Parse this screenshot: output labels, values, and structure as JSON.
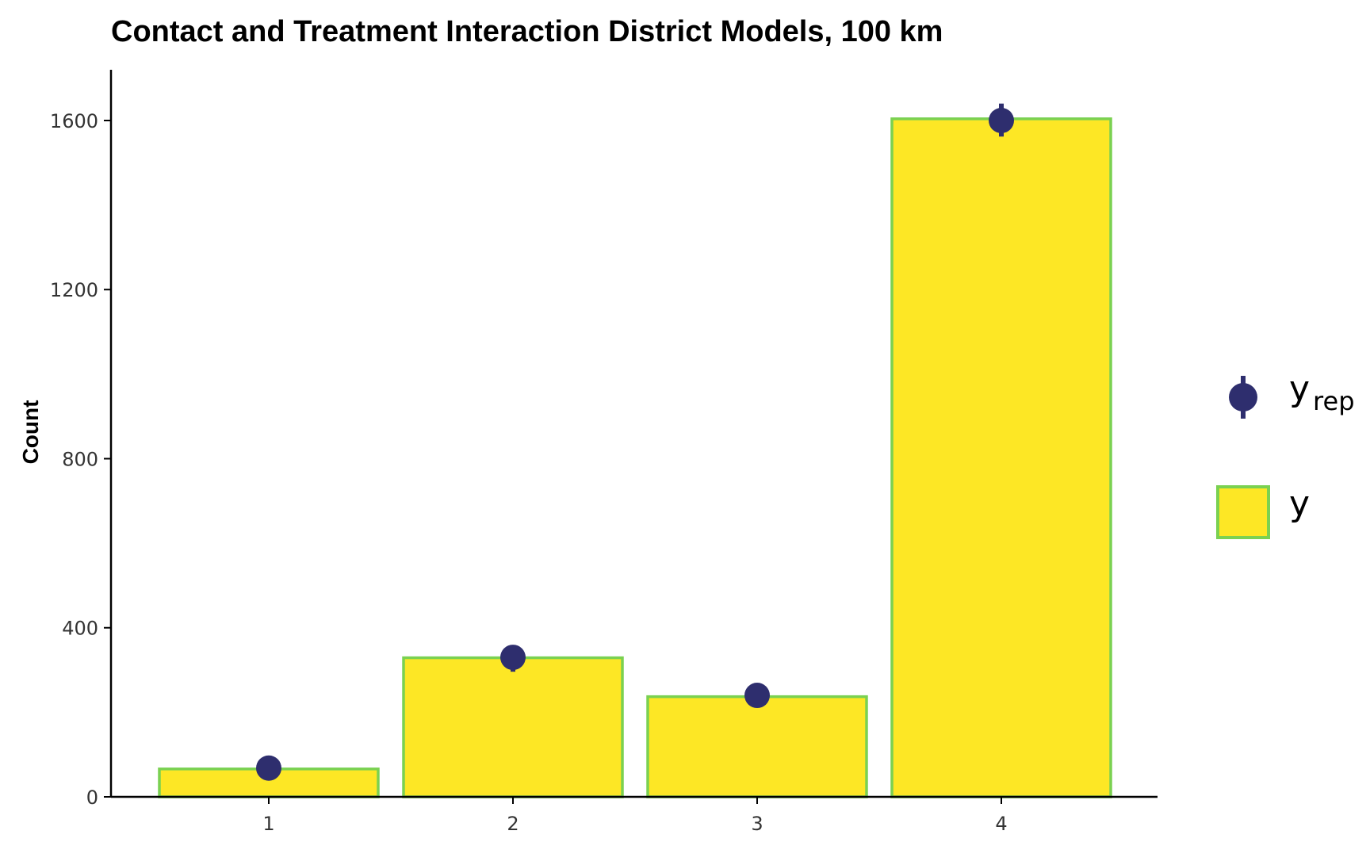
{
  "chart_data": {
    "type": "bar",
    "title": "Contact and Treatment Interaction District Models, 100 km",
    "xlabel": "",
    "ylabel": "Count",
    "categories": [
      "1",
      "2",
      "3",
      "4"
    ],
    "ylim": [
      0,
      1720
    ],
    "yticks": [
      0,
      400,
      800,
      1200,
      1600
    ],
    "grid": false,
    "legend_position": "right",
    "series": [
      {
        "name": "y",
        "kind": "bar",
        "values": [
          66,
          329,
          237,
          1604
        ],
        "fill": "#fde725",
        "stroke": "#7ad151"
      },
      {
        "name": "y_rep",
        "kind": "point-interval",
        "values": [
          68,
          330,
          240,
          1600
        ],
        "lower": [
          62,
          296,
          222,
          1562
        ],
        "upper": [
          74,
          352,
          264,
          1640
        ],
        "color": "#2e2e6e"
      }
    ],
    "legend": {
      "yrep_main": "y",
      "yrep_sub": "rep",
      "y_label": "y"
    }
  }
}
